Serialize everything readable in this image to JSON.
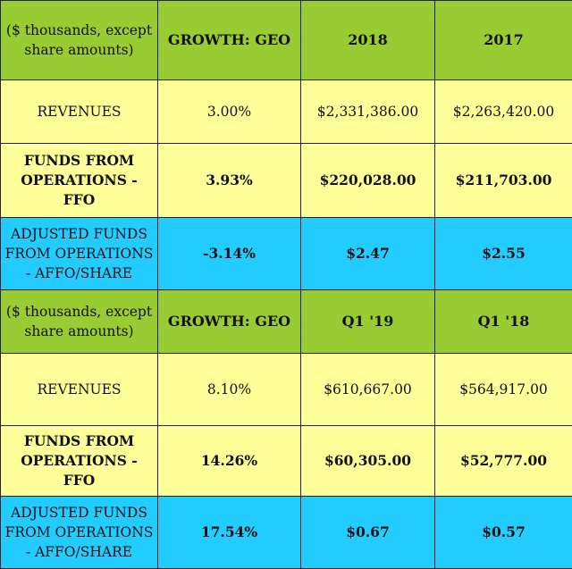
{
  "colors": {
    "header_bg": "#99cc33",
    "row_yellow": "#ffff99",
    "row_cyan": "#22ccff",
    "border": "#222222"
  },
  "sections": [
    {
      "header": {
        "units": "($ thousands, except share amounts)",
        "growth": "GROWTH: GEO",
        "col1": "2018",
        "col2": "2017"
      },
      "rows": [
        {
          "label": "REVENUES",
          "growth": "3.00%",
          "v1": "$2,331,386.00",
          "v2": "$2,263,420.00"
        },
        {
          "label": "FUNDS FROM OPERATIONS - FFO",
          "growth": "3.93%",
          "v1": "$220,028.00",
          "v2": "$211,703.00"
        },
        {
          "label": "ADJUSTED FUNDS FROM OPERATIONS - AFFO/SHARE",
          "growth": "-3.14%",
          "v1": "$2.47",
          "v2": "$2.55"
        }
      ]
    },
    {
      "header": {
        "units": "($ thousands, except share amounts)",
        "growth": "GROWTH: GEO",
        "col1": "Q1 '19",
        "col2": "Q1 '18"
      },
      "rows": [
        {
          "label": "REVENUES",
          "growth": "8.10%",
          "v1": "$610,667.00",
          "v2": "$564,917.00"
        },
        {
          "label": "FUNDS FROM OPERATIONS - FFO",
          "growth": "14.26%",
          "v1": "$60,305.00",
          "v2": "$52,777.00"
        },
        {
          "label": "ADJUSTED FUNDS FROM OPERATIONS - AFFO/SHARE",
          "growth": "17.54%",
          "v1": "$0.67",
          "v2": "$0.57"
        }
      ]
    }
  ]
}
